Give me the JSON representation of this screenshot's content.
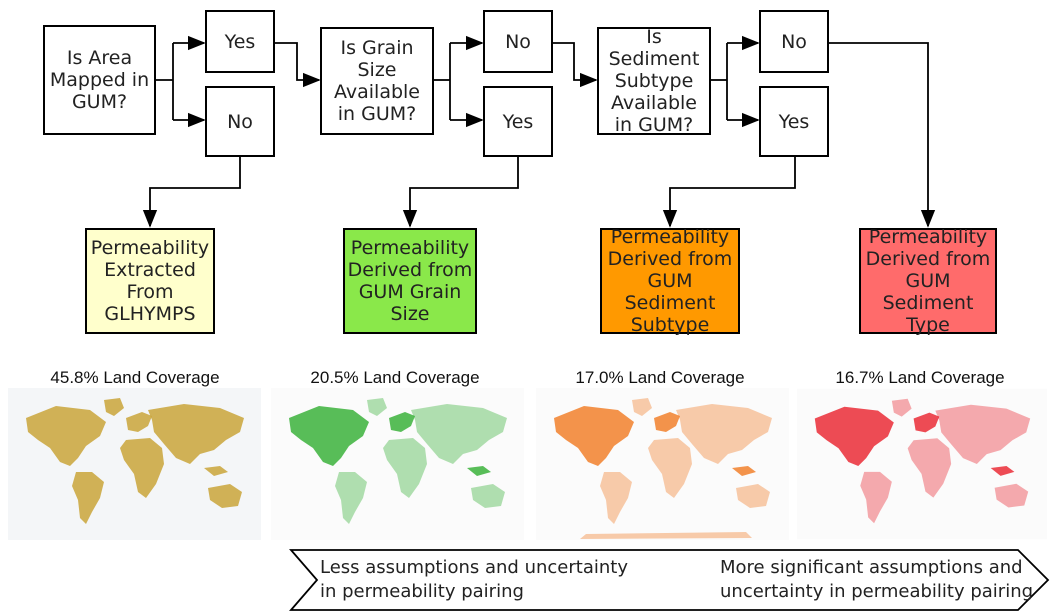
{
  "questions": {
    "q1": "Is Area\nMapped in\nGUM?",
    "q2": "Is Grain\nSize\nAvailable\nin GUM?",
    "q3": "Is Sediment\nSubtype\nAvailable\nin GUM?"
  },
  "answers": {
    "q1_yes": "Yes",
    "q1_no": "No",
    "q2_no": "No",
    "q2_yes": "Yes",
    "q3_no": "No",
    "q3_yes": "Yes"
  },
  "outcomes": [
    {
      "label": "Permeability\nExtracted\nFrom\nGLHYMPS",
      "color": "#ffffcc"
    },
    {
      "label": "Permeability\nDerived from\nGUM Grain\nSize",
      "color": "#8ae84a"
    },
    {
      "label": "Permeability\nDerived from\nGUM Sediment\nSubtype",
      "color": "#ff9900"
    },
    {
      "label": "Permeability\nDerived from\nGUM Sediment\nType",
      "color": "#ff6b6b"
    }
  ],
  "maps": [
    {
      "title": "45.8% Land Coverage",
      "color": "#c9a53a"
    },
    {
      "title": "20.5% Land Coverage",
      "color": "#22a822"
    },
    {
      "title": "17.0% Land Coverage",
      "color": "#f07010"
    },
    {
      "title": "16.7% Land Coverage",
      "color": "#e8101c"
    }
  ],
  "scale": {
    "left": "Less assumptions and uncertainty\nin permeability pairing",
    "right": "More significant assumptions and\nuncertainty in permeability pairing"
  }
}
